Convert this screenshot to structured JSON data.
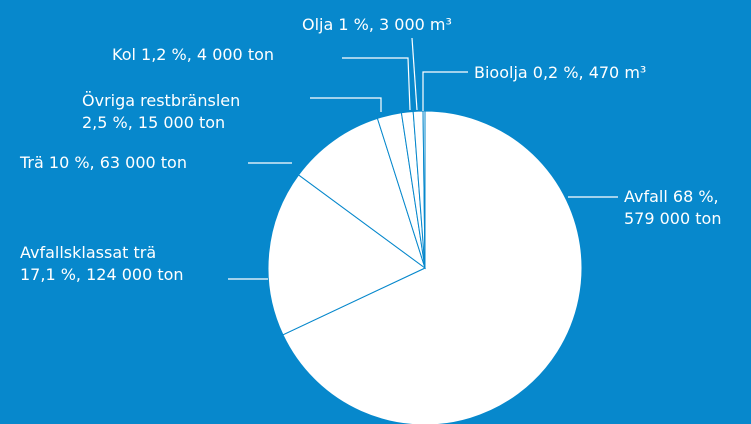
{
  "chart_data": {
    "type": "pie",
    "labels": [
      [
        "Avfall 68 %,",
        "579 000 ton"
      ],
      [
        "Avfallsklassat trä",
        "17,1 %, 124 000 ton"
      ],
      [
        "Trä 10 %, 63 000 ton"
      ],
      [
        "Övriga restbränslen",
        "2,5 %, 15 000 ton"
      ],
      [
        "Kol 1,2 %,  4 000 ton"
      ],
      [
        "Olja 1 %, 3 000 m³"
      ],
      [
        "Bioolja 0,2 %, 470 m³"
      ]
    ],
    "values": [
      68,
      17.1,
      10,
      2.5,
      1.2,
      1,
      0.2
    ],
    "color": "#ffffff",
    "edge_color": "#0788cc"
  }
}
